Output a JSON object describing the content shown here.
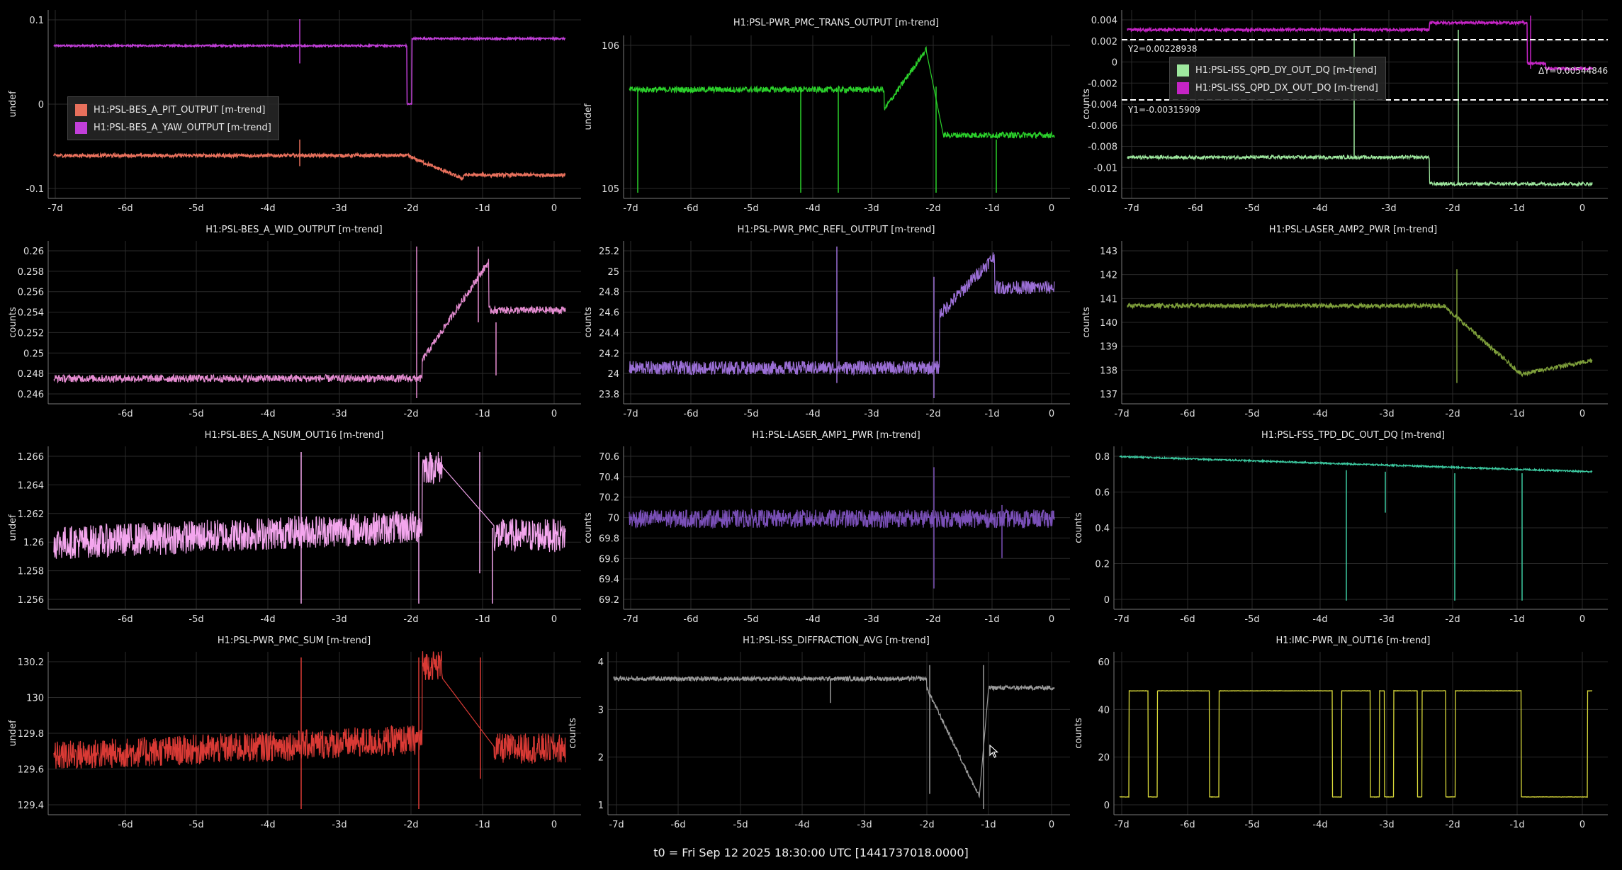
{
  "footer": {
    "t0_label": "t0 = Fri Sep 12 2025 18:30:00 UTC [1441737018.0000]"
  },
  "panels": [
    {
      "id": "p1",
      "title": "",
      "ylabel": "undef",
      "xticks": [
        "-7d",
        "-6d",
        "-5d",
        "-4d",
        "-3d",
        "-2d",
        "-1d",
        "0"
      ],
      "yticks": [
        "-0.1",
        "0",
        "0.1"
      ],
      "legend": [
        {
          "label": "H1:PSL-BES_A_PIT_OUTPUT [m-trend]",
          "color": "#e8705c"
        },
        {
          "label": "H1:PSL-BES_A_YAW_OUTPUT [m-trend]",
          "color": "#c23fd9"
        }
      ]
    },
    {
      "id": "p2",
      "title": "H1:PSL-PWR_PMC_TRANS_OUTPUT [m-trend]",
      "ylabel": "undef",
      "xticks": [
        "-7d",
        "-6d",
        "-5d",
        "-4d",
        "-3d",
        "-2d",
        "-1d",
        "0"
      ],
      "yticks": [
        "105",
        "106"
      ],
      "color": "#2bd12b"
    },
    {
      "id": "p3",
      "title": "",
      "ylabel": "counts",
      "xticks": [
        "-7d",
        "-6d",
        "-5d",
        "-4d",
        "-3d",
        "-2d",
        "-1d",
        "0"
      ],
      "yticks": [
        "-0.012",
        "-0.01",
        "-0.008",
        "-0.006",
        "-0.004",
        "-0.002",
        "0",
        "0.002",
        "0.004"
      ],
      "legend": [
        {
          "label": "H1:PSL-ISS_QPD_DY_OUT_DQ [m-trend]",
          "color": "#9ee89e"
        },
        {
          "label": "H1:PSL-ISS_QPD_DX_OUT_DQ [m-trend]",
          "color": "#c524c5"
        }
      ],
      "cursors": {
        "y2": "Y2=0.00228938",
        "y1": "Y1=-0.00315909",
        "dy": "ΔY=0.00544846"
      }
    },
    {
      "id": "p4",
      "title": "H1:PSL-BES_A_WID_OUTPUT [m-trend]",
      "ylabel": "counts",
      "xticks": [
        "-6d",
        "-5d",
        "-4d",
        "-3d",
        "-2d",
        "-1d",
        "0"
      ],
      "yticks": [
        "0.246",
        "0.248",
        "0.25",
        "0.252",
        "0.254",
        "0.256",
        "0.258",
        "0.26"
      ],
      "color": "#e58cd1"
    },
    {
      "id": "p5",
      "title": "H1:PSL-PWR_PMC_REFL_OUTPUT [m-trend]",
      "ylabel": "counts",
      "xticks": [
        "-7d",
        "-6d",
        "-5d",
        "-4d",
        "-3d",
        "-2d",
        "-1d",
        "0"
      ],
      "yticks": [
        "23.8",
        "24",
        "24.2",
        "24.4",
        "24.6",
        "24.8",
        "25",
        "25.2"
      ],
      "color": "#9b6fd6"
    },
    {
      "id": "p6",
      "title": "H1:PSL-LASER_AMP2_PWR [m-trend]",
      "ylabel": "counts",
      "xticks": [
        "-7d",
        "-6d",
        "-5d",
        "-4d",
        "-3d",
        "-2d",
        "-1d",
        "0"
      ],
      "yticks": [
        "137",
        "138",
        "139",
        "140",
        "141",
        "142",
        "143"
      ],
      "color": "#7d9e3a"
    },
    {
      "id": "p7",
      "title": "H1:PSL-BES_A_NSUM_OUT16 [m-trend]",
      "ylabel": "undef",
      "xticks": [
        "-6d",
        "-5d",
        "-4d",
        "-3d",
        "-2d",
        "-1d",
        "0"
      ],
      "yticks": [
        "1.256",
        "1.258",
        "1.26",
        "1.262",
        "1.264",
        "1.266"
      ],
      "color": "#f4a6ee"
    },
    {
      "id": "p8",
      "title": "H1:PSL-LASER_AMP1_PWR [m-trend]",
      "ylabel": "counts",
      "xticks": [
        "-7d",
        "-6d",
        "-5d",
        "-4d",
        "-3d",
        "-2d",
        "-1d",
        "0"
      ],
      "yticks": [
        "69.2",
        "69.4",
        "69.6",
        "69.8",
        "70",
        "70.2",
        "70.4",
        "70.6"
      ],
      "color": "#7a50b8"
    },
    {
      "id": "p9",
      "title": "H1:PSL-FSS_TPD_DC_OUT_DQ [m-trend]",
      "ylabel": "counts",
      "xticks": [
        "-7d",
        "-6d",
        "-5d",
        "-4d",
        "-3d",
        "-2d",
        "-1d",
        "0"
      ],
      "yticks": [
        "0",
        "0.2",
        "0.4",
        "0.6",
        "0.8"
      ],
      "color": "#3cc9a0"
    },
    {
      "id": "p10",
      "title": "H1:PSL-PWR_PMC_SUM [m-trend]",
      "ylabel": "undef",
      "xticks": [
        "-6d",
        "-5d",
        "-4d",
        "-3d",
        "-2d",
        "-1d",
        "0"
      ],
      "yticks": [
        "129.4",
        "129.6",
        "129.8",
        "130",
        "130.2"
      ],
      "color": "#d93a35"
    },
    {
      "id": "p11",
      "title": "H1:PSL-ISS_DIFFRACTION_AVG [m-trend]",
      "ylabel": "counts",
      "xticks": [
        "-7d",
        "-6d",
        "-5d",
        "-4d",
        "-3d",
        "-2d",
        "-1d",
        "0"
      ],
      "yticks": [
        "1",
        "2",
        "3",
        "4"
      ],
      "color": "#9a9a9a"
    },
    {
      "id": "p12",
      "title": "H1:IMC-PWR_IN_OUT16 [m-trend]",
      "ylabel": "counts",
      "xticks": [
        "-7d",
        "-6d",
        "-5d",
        "-4d",
        "-3d",
        "-2d",
        "-1d",
        "0"
      ],
      "yticks": [
        "0",
        "20",
        "40",
        "60"
      ],
      "color": "#d9d93a"
    }
  ]
}
